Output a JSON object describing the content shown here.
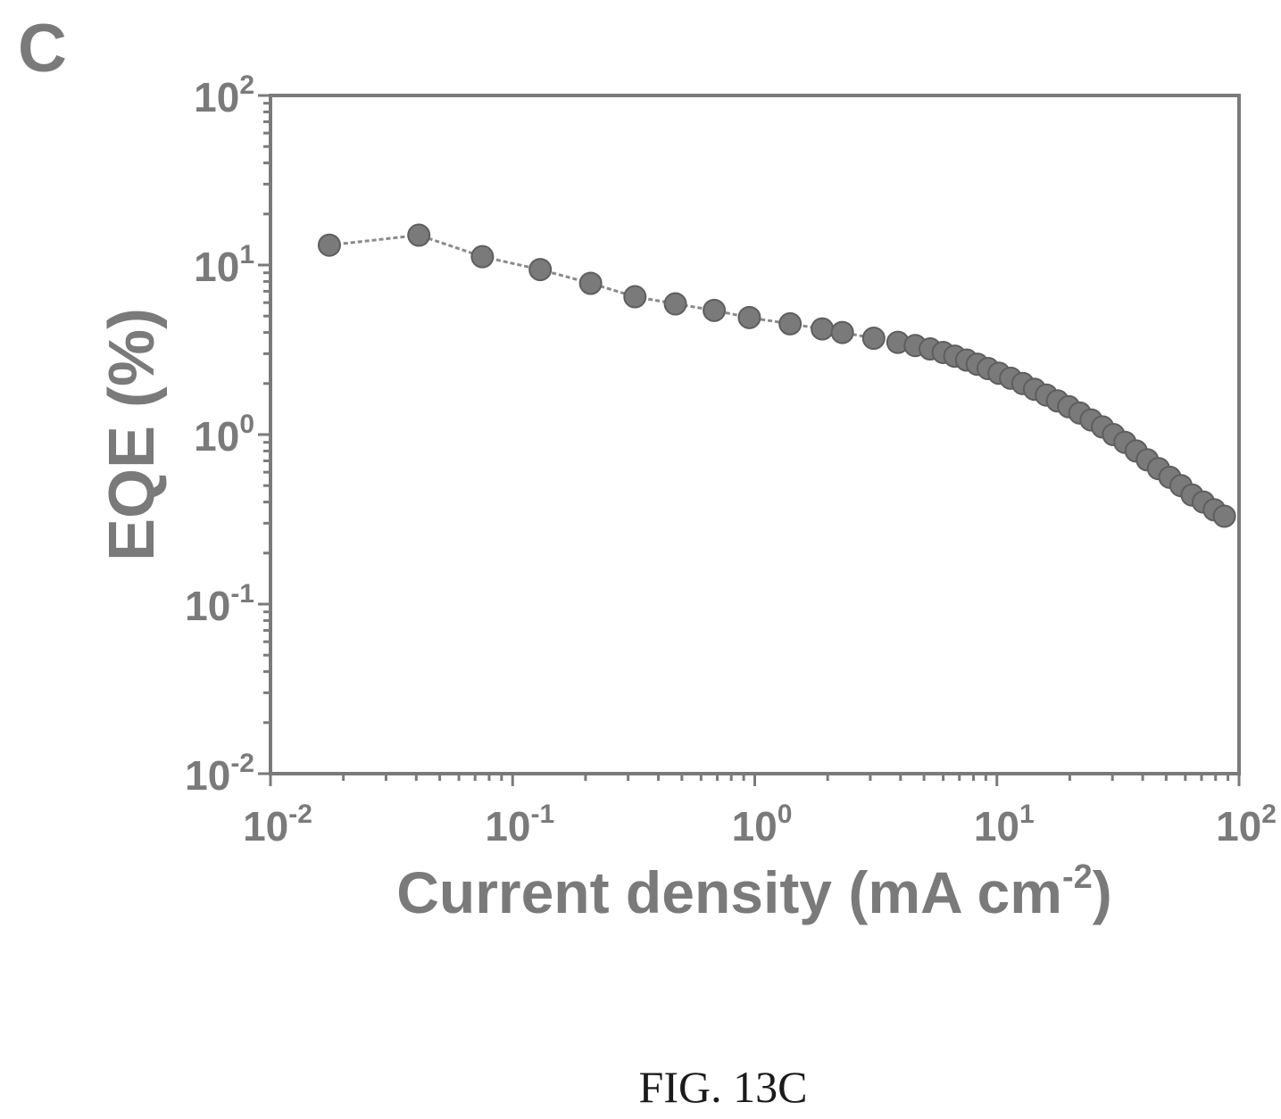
{
  "panel_label": "C",
  "caption": "FIG. 13C",
  "chart_data": {
    "type": "scatter",
    "connected": true,
    "xscale": "log",
    "yscale": "log",
    "xlim": [
      0.01,
      100
    ],
    "ylim": [
      0.01,
      100
    ],
    "xlabel": "Current density (mA cm",
    "xlabel_sup": "-2",
    "xlabel_close": ")",
    "ylabel": "EQE (%)",
    "x_ticks": [
      {
        "value": 0.01,
        "base": "10",
        "exp": "-2"
      },
      {
        "value": 0.1,
        "base": "10",
        "exp": "-1"
      },
      {
        "value": 1,
        "base": "10",
        "exp": "0"
      },
      {
        "value": 10,
        "base": "10",
        "exp": "1"
      },
      {
        "value": 100,
        "base": "10",
        "exp": "2"
      }
    ],
    "y_ticks": [
      {
        "value": 0.01,
        "base": "10",
        "exp": "-2"
      },
      {
        "value": 0.1,
        "base": "10",
        "exp": "-1"
      },
      {
        "value": 1,
        "base": "10",
        "exp": "0"
      },
      {
        "value": 10,
        "base": "10",
        "exp": "1"
      },
      {
        "value": 100,
        "base": "10",
        "exp": "2"
      }
    ],
    "grid": false,
    "marker_color": "#7a7a7a",
    "series": [
      {
        "x": [
          0.0175,
          0.041,
          0.075,
          0.13,
          0.21,
          0.32,
          0.47,
          0.68,
          0.95,
          1.4,
          1.9,
          2.3,
          3.1,
          3.9,
          4.6,
          5.3,
          6.0,
          6.7,
          7.5,
          8.3,
          9.2,
          10.2,
          11.4,
          12.8,
          14.3,
          16.0,
          17.8,
          19.8,
          22.0,
          24.5,
          27.3,
          30.3,
          33.8,
          37.6,
          41.8,
          46.5,
          51.8,
          57.6,
          64.0,
          71.2,
          79.0,
          87.0
        ],
        "y": [
          13.1,
          15.0,
          11.2,
          9.4,
          7.8,
          6.5,
          5.9,
          5.4,
          4.9,
          4.5,
          4.2,
          4.0,
          3.7,
          3.5,
          3.35,
          3.2,
          3.05,
          2.9,
          2.75,
          2.6,
          2.45,
          2.3,
          2.15,
          2.0,
          1.85,
          1.71,
          1.58,
          1.46,
          1.34,
          1.22,
          1.11,
          1.0,
          0.9,
          0.8,
          0.71,
          0.63,
          0.56,
          0.5,
          0.44,
          0.4,
          0.36,
          0.33
        ]
      }
    ]
  }
}
